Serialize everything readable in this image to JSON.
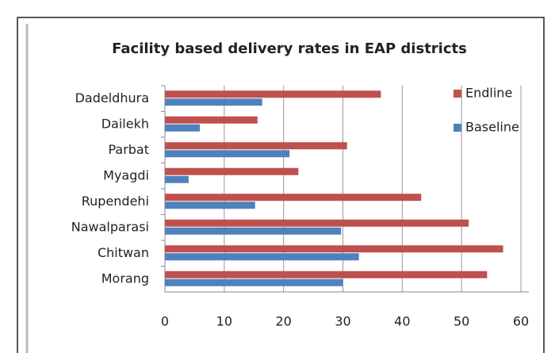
{
  "chart_data": {
    "type": "bar",
    "orientation": "horizontal",
    "title": "Facility based delivery rates in EAP districts",
    "categories": [
      "Dadeldhura",
      "Dailekh",
      "Parbat",
      "Myagdi",
      "Rupendehi",
      "Nawalparasi",
      "Chitwan",
      "Morang"
    ],
    "series": [
      {
        "name": "Endline",
        "color": "#c0504d",
        "values": [
          36.4,
          15.6,
          30.7,
          22.5,
          43.2,
          51.2,
          57,
          54.3
        ]
      },
      {
        "name": "Baseline",
        "color": "#4f81bd",
        "values": [
          16.4,
          5.9,
          21,
          4,
          15.2,
          29.7,
          32.7,
          30
        ]
      }
    ],
    "xlim": [
      0,
      60
    ],
    "xticks": [
      0,
      10,
      20,
      30,
      40,
      50,
      60
    ],
    "grid": true,
    "legend": "top-right"
  }
}
